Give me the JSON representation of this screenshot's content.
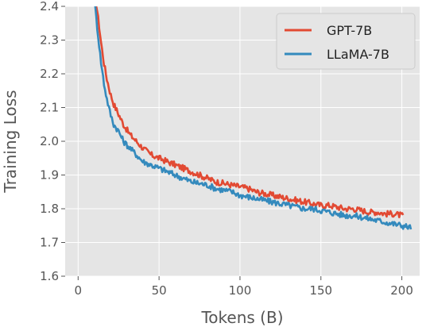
{
  "chart_data": {
    "type": "line",
    "title": "",
    "xlabel": "Tokens (B)",
    "ylabel": "Training Loss",
    "xlim": [
      -8,
      211
    ],
    "ylim": [
      1.6,
      2.4
    ],
    "xticks": [
      0,
      50,
      100,
      150,
      200
    ],
    "yticks": [
      1.6,
      1.7,
      1.8,
      1.9,
      2.0,
      2.1,
      2.2,
      2.3,
      2.4
    ],
    "grid": true,
    "background": "#e5e5e5",
    "legend": "top-right",
    "series": [
      {
        "name": "GPT-7B",
        "color": "#e24a33",
        "x": [
          10,
          12,
          14,
          16,
          18,
          20,
          22,
          25,
          28,
          32,
          36,
          40,
          45,
          50,
          55,
          60,
          65,
          70,
          75,
          80,
          85,
          90,
          95,
          100,
          105,
          110,
          115,
          120,
          125,
          130,
          135,
          140,
          145,
          150,
          155,
          160,
          165,
          170,
          175,
          180,
          185,
          190,
          195,
          200,
          201
        ],
        "y": [
          2.45,
          2.38,
          2.3,
          2.23,
          2.18,
          2.14,
          2.11,
          2.08,
          2.05,
          2.02,
          2.0,
          1.98,
          1.96,
          1.95,
          1.94,
          1.93,
          1.92,
          1.91,
          1.9,
          1.89,
          1.88,
          1.875,
          1.87,
          1.865,
          1.86,
          1.85,
          1.845,
          1.84,
          1.835,
          1.83,
          1.825,
          1.82,
          1.815,
          1.81,
          1.81,
          1.805,
          1.8,
          1.8,
          1.795,
          1.79,
          1.79,
          1.785,
          1.785,
          1.78,
          1.775
        ]
      },
      {
        "name": "LLaMA-7B",
        "color": "#348abd",
        "x": [
          10,
          12,
          14,
          16,
          18,
          20,
          22,
          25,
          28,
          32,
          36,
          40,
          45,
          50,
          55,
          60,
          65,
          70,
          75,
          80,
          85,
          90,
          95,
          100,
          105,
          110,
          115,
          120,
          125,
          130,
          135,
          140,
          145,
          150,
          155,
          160,
          165,
          170,
          175,
          180,
          185,
          190,
          195,
          200,
          205,
          206
        ],
        "y": [
          2.42,
          2.33,
          2.24,
          2.17,
          2.12,
          2.08,
          2.05,
          2.03,
          2.0,
          1.98,
          1.96,
          1.94,
          1.93,
          1.92,
          1.91,
          1.9,
          1.89,
          1.88,
          1.875,
          1.87,
          1.86,
          1.855,
          1.85,
          1.84,
          1.835,
          1.83,
          1.825,
          1.82,
          1.815,
          1.81,
          1.805,
          1.8,
          1.8,
          1.795,
          1.79,
          1.785,
          1.78,
          1.78,
          1.775,
          1.77,
          1.765,
          1.76,
          1.755,
          1.75,
          1.745,
          1.745
        ]
      }
    ]
  }
}
